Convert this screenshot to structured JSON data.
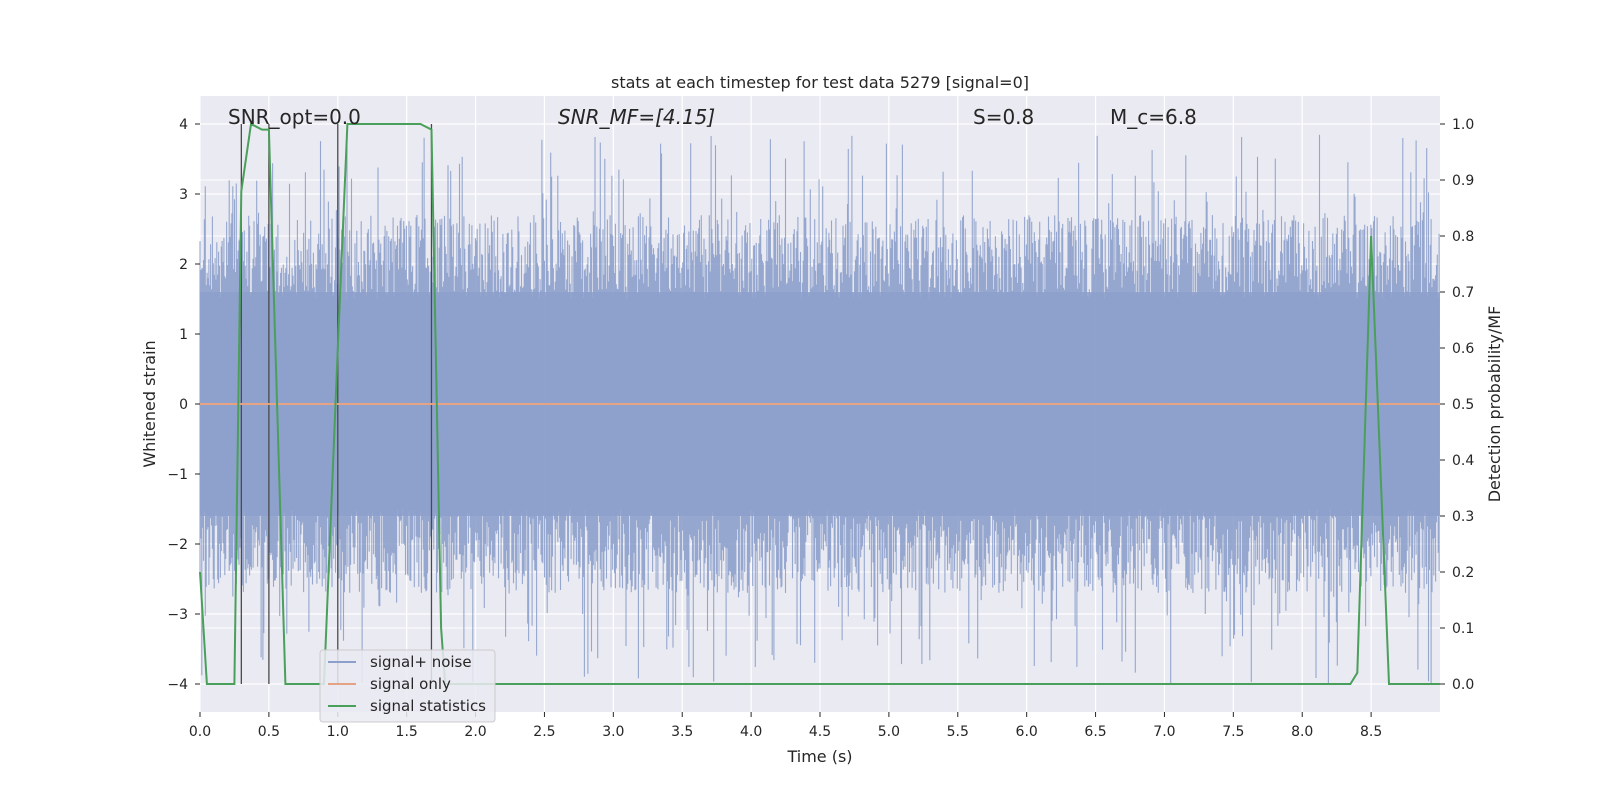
{
  "chart_data": {
    "type": "line",
    "title": "stats at each timestep for test data 5279 [signal=0]",
    "xlabel": "Time (s)",
    "ylabel": "Whitened strain",
    "ylabel_right": "Detection probability/MF",
    "xlim": [
      0.0,
      9.0
    ],
    "ylim": [
      -4.4,
      4.4
    ],
    "ylim_right": [
      -0.05,
      1.05
    ],
    "x_ticks": [
      "0.0",
      "0.5",
      "1.0",
      "1.5",
      "2.0",
      "2.5",
      "3.0",
      "3.5",
      "4.0",
      "4.5",
      "5.0",
      "5.5",
      "6.0",
      "6.5",
      "7.0",
      "7.5",
      "8.0",
      "8.5"
    ],
    "y_ticks": [
      "4",
      "3",
      "2",
      "1",
      "0",
      "−1",
      "−2",
      "−3",
      "−4"
    ],
    "y_ticks_right": [
      "1.0",
      "0.9",
      "0.8",
      "0.7",
      "0.6",
      "0.5",
      "0.4",
      "0.3",
      "0.2",
      "0.1",
      "0.0"
    ],
    "grid": true,
    "legend_position": "lower-left",
    "annotations": [
      {
        "text": "SNR_opt=0.0",
        "x": 0.2,
        "y": 4.0
      },
      {
        "text": "SNR_MF=[4.15]",
        "x": 2.6,
        "y": 4.0
      },
      {
        "text": "S=0.8",
        "x": 5.6,
        "y": 4.0
      },
      {
        "text": "M_c=6.8",
        "x": 6.6,
        "y": 4.0
      }
    ],
    "series": [
      {
        "name": "signal+ noise",
        "color": "#8da0cb",
        "axis": "left",
        "description": "whitened noise, roughly uniform band within about ±1.6 with spikes up to about ±3.7",
        "band_envelope": 1.6,
        "spike_max": 3.85,
        "spike_min": -4.05
      },
      {
        "name": "signal only",
        "color": "#e5a384",
        "axis": "left",
        "x": [
          0.0,
          9.0
        ],
        "values": [
          0.0,
          0.0
        ]
      },
      {
        "name": "signal statistics",
        "color": "#4a9f5a",
        "axis": "right",
        "x": [
          0.0,
          0.05,
          0.1,
          0.2,
          0.25,
          0.3,
          0.37,
          0.45,
          0.5,
          0.62,
          0.9,
          1.0,
          1.07,
          1.6,
          1.68,
          1.75,
          1.78,
          8.35,
          8.4,
          8.5,
          8.63,
          8.7,
          9.0
        ],
        "values": [
          0.2,
          0.0,
          0.0,
          0.0,
          0.0,
          0.88,
          1.0,
          0.99,
          0.99,
          0.0,
          0.0,
          0.6,
          1.0,
          1.0,
          0.99,
          0.1,
          0.0,
          0.0,
          0.02,
          0.8,
          0.0,
          0.0,
          0.0
        ]
      }
    ],
    "vertical_lines": [
      0.3,
      0.5,
      1.0,
      1.68
    ]
  }
}
